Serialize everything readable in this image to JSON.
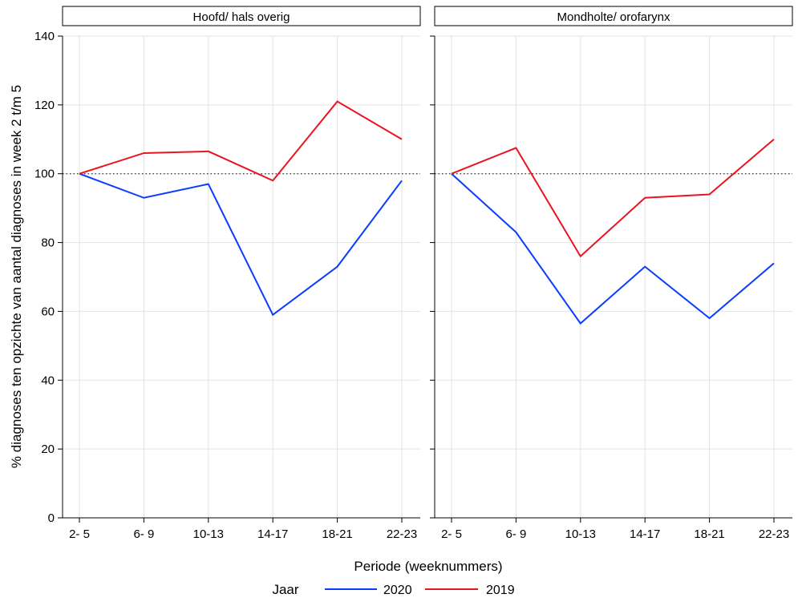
{
  "chart_data": {
    "type": "line",
    "ylabel": "% diagnoses ten opzichte van aantal diagnoses in week 2 t/m 5",
    "xlabel": "Periode (weeknummers)",
    "categories": [
      "2- 5",
      "6- 9",
      "10-13",
      "14-17",
      "18-21",
      "22-23"
    ],
    "ylim": [
      0,
      140
    ],
    "yticks": [
      0,
      20,
      40,
      60,
      80,
      100,
      120,
      140
    ],
    "reference_line": 100,
    "grid": true,
    "legend": {
      "title": "Jaar",
      "position": "bottom",
      "entries": [
        {
          "name": "2020",
          "color": "#0a3cff"
        },
        {
          "name": "2019",
          "color": "#e8141e"
        }
      ]
    },
    "panels": [
      {
        "title": "Hoofd/ hals overig",
        "series": [
          {
            "name": "2020",
            "color": "#0a3cff",
            "values": [
              100,
              93,
              97,
              59,
              73,
              98
            ]
          },
          {
            "name": "2019",
            "color": "#e8141e",
            "values": [
              100,
              106,
              106.5,
              98,
              121,
              110
            ]
          }
        ]
      },
      {
        "title": "Mondholte/ orofarynx",
        "series": [
          {
            "name": "2020",
            "color": "#0a3cff",
            "values": [
              100,
              83,
              56.5,
              73,
              58,
              74
            ]
          },
          {
            "name": "2019",
            "color": "#e8141e",
            "values": [
              100,
              107.5,
              76,
              93,
              94,
              110
            ]
          }
        ]
      }
    ]
  }
}
